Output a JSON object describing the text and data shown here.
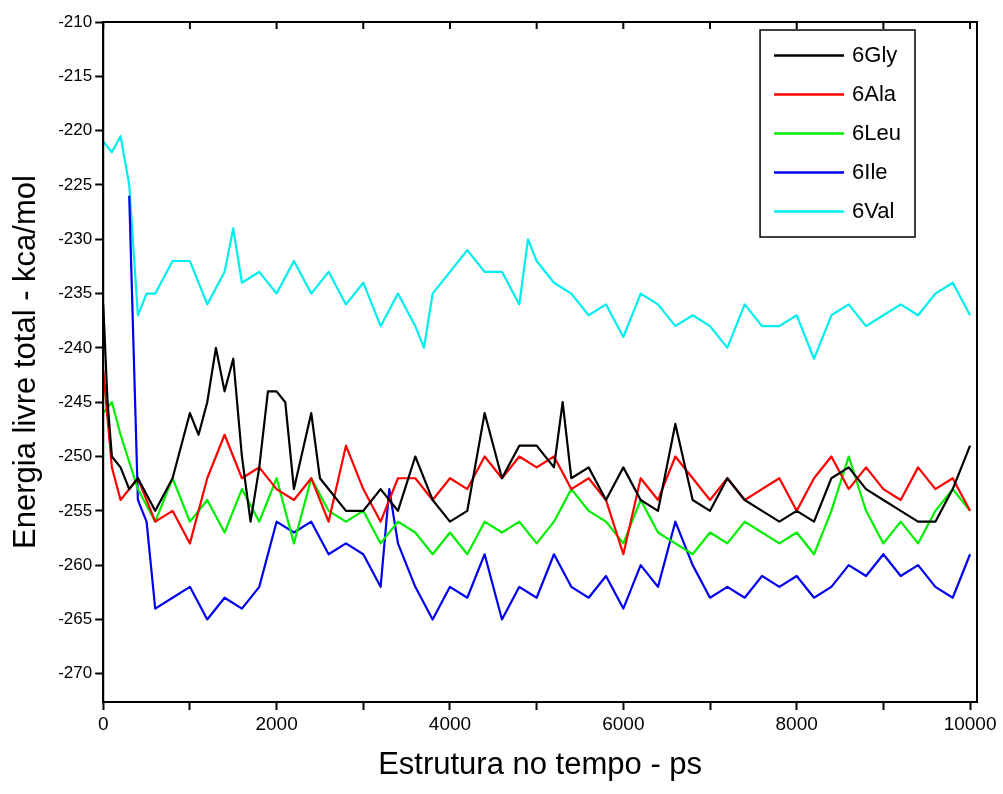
{
  "chart_data": {
    "type": "line",
    "xlabel": "Estrutura no tempo - ps",
    "ylabel": "Energia livre total - kca/mol",
    "xlim": [
      0,
      10080
    ],
    "ylim": [
      -272.6,
      -210
    ],
    "xticks": [
      0,
      {
        "value": 1000,
        "label": null
      },
      2000,
      {
        "value": 3000,
        "label": null
      },
      4000,
      {
        "value": 5000,
        "label": null
      },
      6000,
      {
        "value": 7000,
        "label": null
      },
      8000,
      {
        "value": 9000,
        "label": null
      },
      10000
    ],
    "yticks": [
      -270,
      -265,
      -260,
      -255,
      -250,
      -245,
      -240,
      -235,
      -230,
      -225,
      -220,
      -215,
      -210
    ],
    "legend": "top right",
    "grid": false,
    "marker": "none",
    "line_style": "solid",
    "series": [
      {
        "name": "6Gly",
        "color": "#000000",
        "x": [
          0,
          50,
          100,
          200,
          300,
          400,
          600,
          800,
          1000,
          1100,
          1200,
          1300,
          1400,
          1500,
          1600,
          1700,
          1800,
          1900,
          2000,
          2100,
          2200,
          2400,
          2500,
          2800,
          3000,
          3200,
          3400,
          3600,
          3800,
          4000,
          4200,
          4400,
          4600,
          4800,
          5000,
          5200,
          5300,
          5400,
          5600,
          5800,
          6000,
          6200,
          6400,
          6600,
          6800,
          7000,
          7200,
          7400,
          7600,
          7800,
          8000,
          8200,
          8400,
          8600,
          8800,
          9000,
          9200,
          9400,
          9600,
          9800,
          10000
        ],
        "values": [
          -236,
          -245,
          -250,
          -251,
          -253,
          -252,
          -255,
          -252,
          -246,
          -248,
          -245,
          -240,
          -244,
          -241,
          -250,
          -256,
          -251,
          -244,
          -244,
          -245,
          -253,
          -246,
          -252,
          -255,
          -255,
          -253,
          -255,
          -250,
          -254,
          -256,
          -255,
          -246,
          -252,
          -249,
          -249,
          -251,
          -245,
          -252,
          -251,
          -254,
          -251,
          -254,
          -255,
          -247,
          -254,
          -255,
          -252,
          -254,
          -255,
          -256,
          -255,
          -256,
          -252,
          -251,
          -253,
          -254,
          -255,
          -256,
          -256,
          -253,
          -249
        ]
      },
      {
        "name": "6Ala",
        "color": "#ff0000",
        "x": [
          0,
          100,
          200,
          400,
          600,
          800,
          1000,
          1200,
          1400,
          1600,
          1800,
          2000,
          2200,
          2400,
          2600,
          2800,
          3000,
          3200,
          3400,
          3600,
          3800,
          4000,
          4200,
          4400,
          4600,
          4800,
          5000,
          5200,
          5400,
          5600,
          5800,
          6000,
          6200,
          6400,
          6600,
          6800,
          7000,
          7200,
          7400,
          7600,
          7800,
          8000,
          8200,
          8400,
          8600,
          8800,
          9000,
          9200,
          9400,
          9600,
          9800,
          10000
        ],
        "values": [
          -242,
          -251,
          -254,
          -252,
          -256,
          -255,
          -258,
          -252,
          -248,
          -252,
          -251,
          -253,
          -254,
          -252,
          -256,
          -249,
          -253,
          -256,
          -252,
          -252,
          -254,
          -252,
          -253,
          -250,
          -252,
          -250,
          -251,
          -250,
          -253,
          -252,
          -254,
          -259,
          -252,
          -254,
          -250,
          -252,
          -254,
          -252,
          -254,
          -253,
          -252,
          -255,
          -252,
          -250,
          -253,
          -251,
          -253,
          -254,
          -251,
          -253,
          -252,
          -255
        ]
      },
      {
        "name": "6Leu",
        "color": "#00ee00",
        "x": [
          0,
          100,
          200,
          400,
          600,
          800,
          1000,
          1200,
          1400,
          1600,
          1800,
          2000,
          2200,
          2400,
          2600,
          2800,
          3000,
          3200,
          3400,
          3600,
          3800,
          4000,
          4200,
          4400,
          4600,
          4800,
          5000,
          5200,
          5400,
          5600,
          5800,
          6000,
          6200,
          6400,
          6600,
          6800,
          7000,
          7200,
          7400,
          7600,
          7800,
          8000,
          8200,
          8400,
          8600,
          8800,
          9000,
          9200,
          9400,
          9600,
          9800,
          10000
        ],
        "values": [
          -246,
          -245,
          -248,
          -253,
          -256,
          -252,
          -256,
          -254,
          -257,
          -253,
          -256,
          -252,
          -258,
          -252,
          -255,
          -256,
          -255,
          -258,
          -256,
          -257,
          -259,
          -257,
          -259,
          -256,
          -257,
          -256,
          -258,
          -256,
          -253,
          -255,
          -256,
          -258,
          -254,
          -257,
          -258,
          -259,
          -257,
          -258,
          -256,
          -257,
          -258,
          -257,
          -259,
          -255,
          -250,
          -255,
          -258,
          -256,
          -258,
          -255,
          -253,
          -255
        ]
      },
      {
        "name": "6Ile",
        "color": "#0000ee",
        "x": [
          300,
          400,
          500,
          600,
          800,
          1000,
          1200,
          1400,
          1600,
          1800,
          2000,
          2200,
          2400,
          2600,
          2800,
          3000,
          3200,
          3300,
          3400,
          3600,
          3800,
          4000,
          4200,
          4400,
          4600,
          4800,
          5000,
          5200,
          5400,
          5600,
          5800,
          6000,
          6200,
          6400,
          6600,
          6800,
          7000,
          7200,
          7400,
          7600,
          7800,
          8000,
          8200,
          8400,
          8600,
          8800,
          9000,
          9200,
          9400,
          9600,
          9800,
          10000
        ],
        "values": [
          -226,
          -254,
          -256,
          -264,
          -263,
          -262,
          -265,
          -263,
          -264,
          -262,
          -256,
          -257,
          -256,
          -259,
          -258,
          -259,
          -262,
          -253,
          -258,
          -262,
          -265,
          -262,
          -263,
          -259,
          -265,
          -262,
          -263,
          -259,
          -262,
          -263,
          -261,
          -264,
          -260,
          -262,
          -256,
          -260,
          -263,
          -262,
          -263,
          -261,
          -262,
          -261,
          -263,
          -262,
          -260,
          -261,
          -259,
          -261,
          -260,
          -262,
          -263,
          -259
        ]
      },
      {
        "name": "6Val",
        "color": "#00eeee",
        "x": [
          0,
          100,
          200,
          300,
          400,
          500,
          600,
          800,
          1000,
          1200,
          1400,
          1500,
          1600,
          1800,
          2000,
          2200,
          2400,
          2600,
          2800,
          3000,
          3200,
          3400,
          3600,
          3700,
          3800,
          4000,
          4200,
          4400,
          4600,
          4800,
          4900,
          5000,
          5200,
          5400,
          5600,
          5800,
          6000,
          6200,
          6400,
          6600,
          6800,
          7000,
          7200,
          7400,
          7600,
          7800,
          8000,
          8200,
          8400,
          8600,
          8800,
          9000,
          9200,
          9400,
          9600,
          9800,
          10000
        ],
        "values": [
          -221,
          -222,
          -220.5,
          -225,
          -237,
          -235,
          -235,
          -232,
          -232,
          -236,
          -233,
          -229,
          -234,
          -233,
          -235,
          -232,
          -235,
          -233,
          -236,
          -234,
          -238,
          -235,
          -238,
          -240,
          -235,
          -233,
          -231,
          -233,
          -233,
          -236,
          -230,
          -232,
          -234,
          -235,
          -237,
          -236,
          -239,
          -235,
          -236,
          -238,
          -237,
          -238,
          -240,
          -236,
          -238,
          -238,
          -237,
          -241,
          -237,
          -236,
          -238,
          -237,
          -236,
          -237,
          -235,
          -234,
          -237
        ]
      }
    ]
  }
}
